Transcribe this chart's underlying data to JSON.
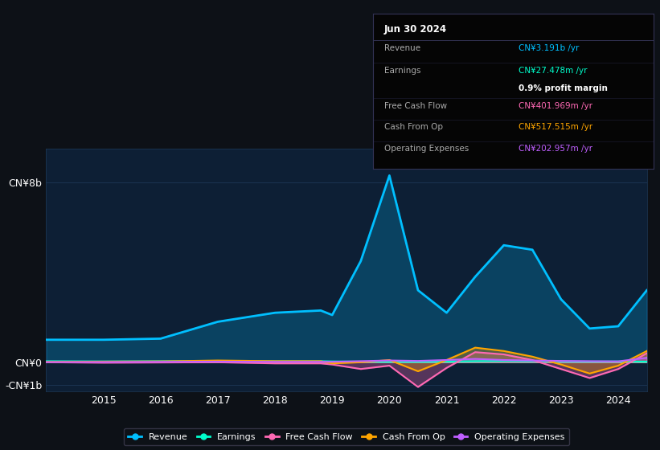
{
  "background_color": "#0d1117",
  "plot_bg_color": "#0d1f35",
  "grid_color": "#1e3a5a",
  "years": [
    2014,
    2015,
    2016,
    2017,
    2018,
    2018.8,
    2019,
    2019.5,
    2020,
    2020.5,
    2021,
    2021.5,
    2022,
    2022.5,
    2023,
    2023.5,
    2024,
    2024.5
  ],
  "revenue": [
    1.0,
    1.0,
    1.05,
    1.8,
    2.2,
    2.3,
    2.1,
    4.5,
    8.3,
    3.2,
    2.2,
    3.8,
    5.2,
    5.0,
    2.8,
    1.5,
    1.6,
    3.2
  ],
  "earnings": [
    0.05,
    0.04,
    0.05,
    0.06,
    0.05,
    0.05,
    0.04,
    0.03,
    0.02,
    0.02,
    0.03,
    0.05,
    0.06,
    0.05,
    0.04,
    0.03,
    0.04,
    0.027
  ],
  "free_cash_flow": [
    0.0,
    -0.02,
    -0.01,
    0.0,
    -0.05,
    -0.05,
    -0.1,
    -0.3,
    -0.15,
    -1.1,
    -0.25,
    0.45,
    0.35,
    0.1,
    -0.3,
    -0.7,
    -0.3,
    0.4
  ],
  "cash_from_op": [
    0.02,
    0.03,
    0.04,
    0.08,
    0.05,
    0.05,
    -0.05,
    0.0,
    0.1,
    -0.4,
    0.1,
    0.65,
    0.5,
    0.25,
    -0.1,
    -0.5,
    -0.15,
    0.5
  ],
  "operating_expenses": [
    0.01,
    0.01,
    0.02,
    0.03,
    0.02,
    0.02,
    0.02,
    0.05,
    0.08,
    0.06,
    0.1,
    0.15,
    0.1,
    0.08,
    0.06,
    0.05,
    0.04,
    0.2
  ],
  "revenue_color": "#00bfff",
  "earnings_color": "#00ffcc",
  "free_cash_flow_color": "#ff69b4",
  "cash_from_op_color": "#ffa500",
  "operating_expenses_color": "#bf5fff",
  "ylim_top": 9.5,
  "ylim_bottom": -1.3,
  "y_ticks_labels": [
    "-CN¥1b",
    "CN¥0",
    "CN¥8b"
  ],
  "y_ticks_values": [
    -1.0,
    0.0,
    8.0
  ],
  "x_ticks": [
    2015,
    2016,
    2017,
    2018,
    2019,
    2020,
    2021,
    2022,
    2023,
    2024
  ],
  "tooltip_title": "Jun 30 2024",
  "tooltip_revenue_label": "Revenue",
  "tooltip_revenue_value": "CN¥3.191b /yr",
  "tooltip_earnings_label": "Earnings",
  "tooltip_earnings_value": "CN¥27.478m /yr",
  "tooltip_profit_margin": "0.9% profit margin",
  "tooltip_fcf_label": "Free Cash Flow",
  "tooltip_fcf_value": "CN¥401.969m /yr",
  "tooltip_cashfromop_label": "Cash From Op",
  "tooltip_cashfromop_value": "CN¥517.515m /yr",
  "tooltip_opex_label": "Operating Expenses",
  "tooltip_opex_value": "CN¥202.957m /yr"
}
